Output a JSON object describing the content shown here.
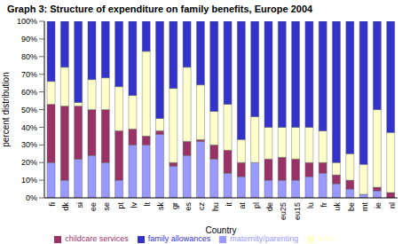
{
  "chart_data": {
    "type": "bar",
    "title": "Graph 3: Structure of expenditure on family benefits, Europe 2004",
    "x_label": "Country",
    "y_label": "percent distribution",
    "categories": [
      "fi",
      "dk",
      "si",
      "ee",
      "se",
      "pt",
      "lv",
      "lt",
      "sk",
      "gr",
      "es",
      "cz",
      "hu",
      "it",
      "at",
      "pl",
      "de",
      "eu25",
      "eu15",
      "lu",
      "fr",
      "uk",
      "be",
      "mt",
      "ie",
      "nl"
    ],
    "series": [
      {
        "name": "maternity/parenting",
        "color": "#9999FF",
        "values": [
          20,
          10,
          22,
          24,
          20,
          10,
          30,
          30,
          36,
          18,
          24,
          32,
          22,
          14,
          12,
          20,
          10,
          10,
          10,
          12,
          14,
          8,
          5,
          2,
          4,
          0
        ]
      },
      {
        "name": "childcare services",
        "color": "#993366",
        "values": [
          33,
          42,
          30,
          26,
          30,
          28,
          9,
          5,
          2,
          2,
          8,
          1,
          8,
          13,
          8,
          0,
          12,
          13,
          12,
          8,
          6,
          5,
          5,
          0,
          2,
          3
        ]
      },
      {
        "name": "other",
        "color": "#FFFFCC",
        "values": [
          13,
          22,
          2,
          17,
          18,
          25,
          19,
          48,
          7,
          42,
          42,
          31,
          19,
          26,
          13,
          26,
          18,
          17,
          18,
          20,
          18,
          7,
          15,
          17,
          44,
          34
        ]
      },
      {
        "name": "family allowances",
        "color": "#3333CC",
        "values": [
          34,
          26,
          46,
          33,
          32,
          37,
          42,
          17,
          55,
          38,
          26,
          36,
          51,
          47,
          67,
          54,
          60,
          60,
          60,
          60,
          62,
          80,
          75,
          81,
          50,
          63
        ]
      }
    ],
    "stacked": true,
    "ylim": [
      0,
      100
    ],
    "yticks": [
      {
        "value": 0,
        "label": "0%"
      },
      {
        "value": 10,
        "label": "10%"
      },
      {
        "value": 20,
        "label": "20%"
      },
      {
        "value": 30,
        "label": "30%"
      },
      {
        "value": 40,
        "label": "40%"
      },
      {
        "value": 50,
        "label": "50%"
      },
      {
        "value": 60,
        "label": "60%"
      },
      {
        "value": 70,
        "label": "70%"
      },
      {
        "value": 80,
        "label": "80%"
      },
      {
        "value": 90,
        "label": "90%"
      },
      {
        "value": 100,
        "label": "100%"
      }
    ],
    "grid": false,
    "legend": "bottom"
  }
}
